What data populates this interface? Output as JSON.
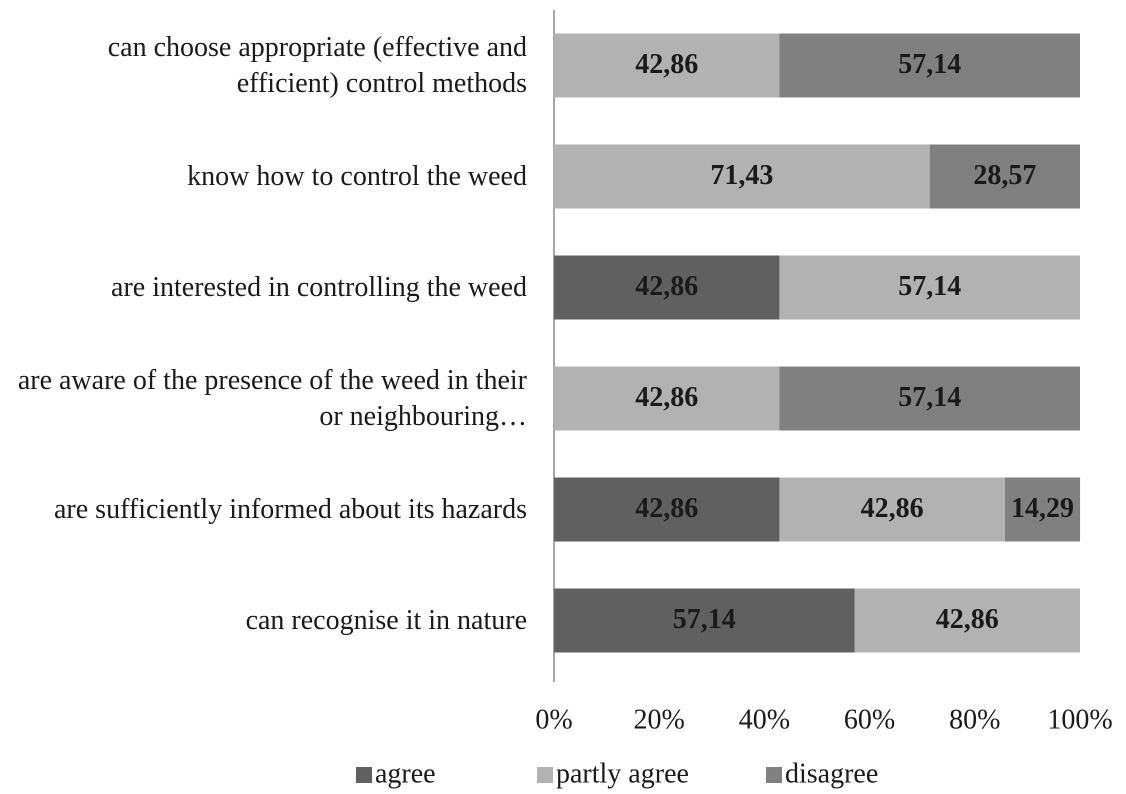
{
  "chart_data": {
    "type": "stacked-bar-horizontal",
    "categories": [
      "can choose appropriate (effective and efficient) control methods",
      "know how to control the weed",
      "are interested in controlling the weed",
      "are aware of the presence of the weed in their or neighbouring…",
      "are sufficiently informed about its hazards",
      "can recognise it in nature"
    ],
    "series": [
      {
        "name": "agree",
        "color": "#606060",
        "values": [
          null,
          null,
          42.86,
          null,
          42.86,
          57.14
        ],
        "value_labels": [
          null,
          null,
          "42,86",
          null,
          "42,86",
          "57,14"
        ]
      },
      {
        "name": "partly agree",
        "color": "#b2b2b2",
        "values": [
          42.86,
          71.43,
          57.14,
          42.86,
          42.86,
          42.86
        ],
        "value_labels": [
          "42,86",
          "71,43",
          "57,14",
          "42,86",
          "42,86",
          "42,86"
        ]
      },
      {
        "name": "disagree",
        "color": "#808080",
        "values": [
          57.14,
          28.57,
          null,
          57.14,
          14.29,
          null
        ],
        "value_labels": [
          "57,14",
          "28,57",
          null,
          "57,14",
          "14,29",
          null
        ]
      }
    ],
    "xlim": [
      0,
      100
    ],
    "xticks": [
      {
        "value": 0,
        "label": "0%"
      },
      {
        "value": 20,
        "label": "20%"
      },
      {
        "value": 40,
        "label": "40%"
      },
      {
        "value": 60,
        "label": "60%"
      },
      {
        "value": 80,
        "label": "80%"
      },
      {
        "value": 100,
        "label": "100%"
      }
    ],
    "legend": "bottom"
  }
}
